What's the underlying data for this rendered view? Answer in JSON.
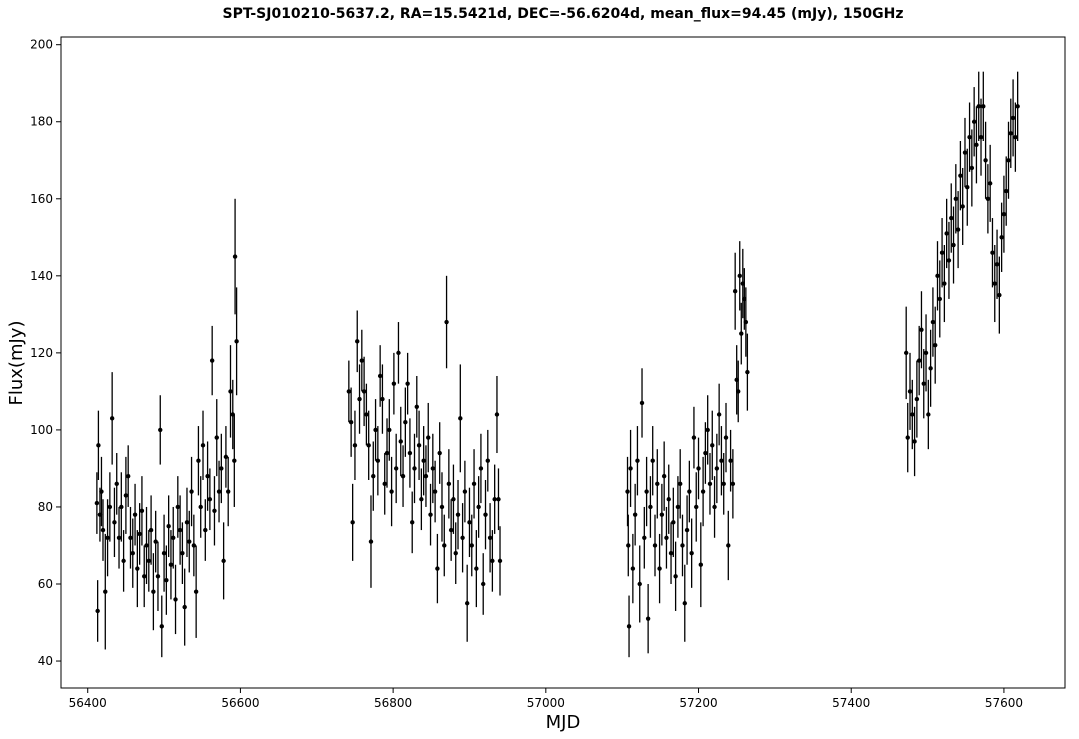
{
  "chart_data": {
    "type": "scatter",
    "title": "SPT-SJ010210-5637.2, RA=15.5421d, DEC=-56.6204d, mean_flux=94.45 (mJy), 150GHz",
    "xlabel": "MJD",
    "ylabel": "Flux(mJy)",
    "xlim": [
      56365,
      57680
    ],
    "ylim": [
      33,
      202
    ],
    "xticks": [
      56400,
      56600,
      56800,
      57000,
      57200,
      57400,
      57600
    ],
    "yticks": [
      40,
      60,
      80,
      100,
      120,
      140,
      160,
      180,
      200
    ],
    "grid": false,
    "legend": "none",
    "error_bars": "vertical",
    "marker": "filled-circle",
    "color": "#000000",
    "points": [
      [
        56412,
        81,
        8
      ],
      [
        56413,
        53,
        8
      ],
      [
        56414,
        96,
        9
      ],
      [
        56416,
        78,
        7
      ],
      [
        56418,
        84,
        9
      ],
      [
        56420,
        74,
        8
      ],
      [
        56423,
        58,
        15
      ],
      [
        56426,
        72,
        10
      ],
      [
        56429,
        80,
        9
      ],
      [
        56432,
        103,
        12
      ],
      [
        56435,
        76,
        9
      ],
      [
        56438,
        86,
        8
      ],
      [
        56441,
        72,
        8
      ],
      [
        56444,
        80,
        9
      ],
      [
        56447,
        66,
        8
      ],
      [
        56450,
        83,
        10
      ],
      [
        56453,
        88,
        8
      ],
      [
        56456,
        72,
        8
      ],
      [
        56459,
        68,
        9
      ],
      [
        56462,
        78,
        8
      ],
      [
        56465,
        64,
        10
      ],
      [
        56468,
        73,
        8
      ],
      [
        56471,
        79,
        9
      ],
      [
        56474,
        62,
        8
      ],
      [
        56477,
        70,
        10
      ],
      [
        56480,
        66,
        8
      ],
      [
        56483,
        74,
        9
      ],
      [
        56486,
        58,
        10
      ],
      [
        56489,
        71,
        8
      ],
      [
        56492,
        62,
        9
      ],
      [
        56495,
        100,
        9
      ],
      [
        56497,
        49,
        8
      ],
      [
        56500,
        68,
        10
      ],
      [
        56503,
        61,
        9
      ],
      [
        56506,
        75,
        8
      ],
      [
        56509,
        65,
        9
      ],
      [
        56512,
        72,
        8
      ],
      [
        56515,
        56,
        9
      ],
      [
        56518,
        80,
        8
      ],
      [
        56521,
        74,
        9
      ],
      [
        56524,
        68,
        8
      ],
      [
        56527,
        54,
        10
      ],
      [
        56530,
        76,
        9
      ],
      [
        56533,
        71,
        8
      ],
      [
        56536,
        84,
        9
      ],
      [
        56539,
        70,
        8
      ],
      [
        56542,
        58,
        12
      ],
      [
        56545,
        92,
        9
      ],
      [
        56548,
        80,
        8
      ],
      [
        56551,
        96,
        9
      ],
      [
        56554,
        74,
        8
      ],
      [
        56557,
        88,
        9
      ],
      [
        56560,
        82,
        8
      ],
      [
        56563,
        118,
        9
      ],
      [
        56566,
        79,
        9
      ],
      [
        56569,
        98,
        10
      ],
      [
        56572,
        84,
        8
      ],
      [
        56575,
        90,
        9
      ],
      [
        56578,
        66,
        10
      ],
      [
        56581,
        93,
        8
      ],
      [
        56584,
        84,
        9
      ],
      [
        56587,
        110,
        12
      ],
      [
        56590,
        104,
        9
      ],
      [
        56592,
        92,
        12
      ],
      [
        56593,
        145,
        15
      ],
      [
        56595,
        123,
        14
      ],
      [
        56742,
        110,
        8
      ],
      [
        56745,
        102,
        9
      ],
      [
        56747,
        76,
        10
      ],
      [
        56750,
        96,
        9
      ],
      [
        56753,
        123,
        8
      ],
      [
        56756,
        108,
        9
      ],
      [
        56759,
        118,
        8
      ],
      [
        56762,
        110,
        9
      ],
      [
        56765,
        104,
        8
      ],
      [
        56768,
        96,
        9
      ],
      [
        56771,
        71,
        12
      ],
      [
        56774,
        88,
        9
      ],
      [
        56777,
        100,
        8
      ],
      [
        56780,
        92,
        9
      ],
      [
        56783,
        114,
        8
      ],
      [
        56786,
        108,
        9
      ],
      [
        56789,
        86,
        8
      ],
      [
        56792,
        94,
        9
      ],
      [
        56795,
        100,
        8
      ],
      [
        56798,
        84,
        9
      ],
      [
        56801,
        112,
        8
      ],
      [
        56804,
        90,
        9
      ],
      [
        56807,
        120,
        8
      ],
      [
        56810,
        97,
        9
      ],
      [
        56813,
        88,
        8
      ],
      [
        56816,
        102,
        9
      ],
      [
        56819,
        112,
        8
      ],
      [
        56822,
        94,
        9
      ],
      [
        56825,
        76,
        8
      ],
      [
        56828,
        90,
        9
      ],
      [
        56831,
        106,
        8
      ],
      [
        56834,
        96,
        9
      ],
      [
        56837,
        82,
        8
      ],
      [
        56840,
        92,
        9
      ],
      [
        56843,
        88,
        8
      ],
      [
        56846,
        98,
        9
      ],
      [
        56849,
        78,
        8
      ],
      [
        56852,
        90,
        9
      ],
      [
        56855,
        84,
        8
      ],
      [
        56858,
        64,
        9
      ],
      [
        56861,
        94,
        8
      ],
      [
        56864,
        80,
        9
      ],
      [
        56867,
        70,
        8
      ],
      [
        56870,
        128,
        12
      ],
      [
        56873,
        86,
        9
      ],
      [
        56876,
        74,
        8
      ],
      [
        56879,
        82,
        9
      ],
      [
        56882,
        68,
        8
      ],
      [
        56885,
        78,
        9
      ],
      [
        56888,
        103,
        14
      ],
      [
        56891,
        72,
        9
      ],
      [
        56894,
        84,
        8
      ],
      [
        56897,
        55,
        10
      ],
      [
        56900,
        76,
        9
      ],
      [
        56903,
        70,
        8
      ],
      [
        56906,
        86,
        9
      ],
      [
        56909,
        64,
        10
      ],
      [
        56912,
        80,
        8
      ],
      [
        56915,
        90,
        9
      ],
      [
        56918,
        60,
        8
      ],
      [
        56921,
        78,
        9
      ],
      [
        56924,
        92,
        8
      ],
      [
        56927,
        72,
        9
      ],
      [
        56930,
        66,
        8
      ],
      [
        56933,
        82,
        9
      ],
      [
        56936,
        104,
        10
      ],
      [
        56938,
        82,
        8
      ],
      [
        56940,
        66,
        9
      ],
      [
        57107,
        84,
        9
      ],
      [
        57108,
        70,
        8
      ],
      [
        57109,
        49,
        8
      ],
      [
        57111,
        90,
        10
      ],
      [
        57114,
        64,
        9
      ],
      [
        57117,
        78,
        8
      ],
      [
        57120,
        92,
        9
      ],
      [
        57123,
        60,
        10
      ],
      [
        57126,
        107,
        9
      ],
      [
        57129,
        72,
        8
      ],
      [
        57132,
        84,
        9
      ],
      [
        57134,
        51,
        9
      ],
      [
        57137,
        80,
        8
      ],
      [
        57140,
        92,
        9
      ],
      [
        57143,
        70,
        8
      ],
      [
        57146,
        86,
        9
      ],
      [
        57149,
        64,
        9
      ],
      [
        57152,
        78,
        8
      ],
      [
        57155,
        88,
        9
      ],
      [
        57158,
        72,
        8
      ],
      [
        57161,
        82,
        9
      ],
      [
        57164,
        68,
        8
      ],
      [
        57167,
        76,
        9
      ],
      [
        57170,
        62,
        9
      ],
      [
        57173,
        80,
        8
      ],
      [
        57176,
        86,
        9
      ],
      [
        57179,
        70,
        8
      ],
      [
        57182,
        55,
        10
      ],
      [
        57185,
        74,
        9
      ],
      [
        57188,
        84,
        8
      ],
      [
        57191,
        68,
        9
      ],
      [
        57194,
        98,
        8
      ],
      [
        57197,
        80,
        9
      ],
      [
        57200,
        90,
        8
      ],
      [
        57203,
        65,
        11
      ],
      [
        57206,
        84,
        9
      ],
      [
        57209,
        94,
        8
      ],
      [
        57212,
        100,
        9
      ],
      [
        57215,
        86,
        8
      ],
      [
        57218,
        96,
        9
      ],
      [
        57221,
        80,
        8
      ],
      [
        57224,
        90,
        9
      ],
      [
        57227,
        104,
        8
      ],
      [
        57230,
        92,
        9
      ],
      [
        57233,
        86,
        8
      ],
      [
        57236,
        98,
        9
      ],
      [
        57239,
        70,
        9
      ],
      [
        57242,
        92,
        8
      ],
      [
        57245,
        86,
        9
      ],
      [
        57248,
        136,
        10
      ],
      [
        57250,
        113,
        9
      ],
      [
        57252,
        110,
        8
      ],
      [
        57254,
        140,
        9
      ],
      [
        57256,
        125,
        8
      ],
      [
        57258,
        138,
        9
      ],
      [
        57260,
        134,
        8
      ],
      [
        57262,
        128,
        9
      ],
      [
        57264,
        115,
        10
      ],
      [
        57472,
        120,
        12
      ],
      [
        57474,
        98,
        9
      ],
      [
        57477,
        110,
        10
      ],
      [
        57480,
        104,
        9
      ],
      [
        57483,
        97,
        9
      ],
      [
        57486,
        108,
        10
      ],
      [
        57489,
        118,
        9
      ],
      [
        57492,
        126,
        10
      ],
      [
        57495,
        112,
        9
      ],
      [
        57498,
        120,
        10
      ],
      [
        57501,
        104,
        9
      ],
      [
        57504,
        116,
        10
      ],
      [
        57507,
        128,
        9
      ],
      [
        57510,
        122,
        10
      ],
      [
        57513,
        140,
        9
      ],
      [
        57516,
        134,
        10
      ],
      [
        57519,
        146,
        9
      ],
      [
        57522,
        138,
        10
      ],
      [
        57525,
        151,
        9
      ],
      [
        57528,
        144,
        10
      ],
      [
        57531,
        155,
        9
      ],
      [
        57534,
        148,
        10
      ],
      [
        57537,
        160,
        9
      ],
      [
        57540,
        152,
        10
      ],
      [
        57543,
        166,
        9
      ],
      [
        57546,
        158,
        10
      ],
      [
        57549,
        172,
        9
      ],
      [
        57552,
        163,
        10
      ],
      [
        57555,
        176,
        9
      ],
      [
        57558,
        168,
        10
      ],
      [
        57561,
        180,
        9
      ],
      [
        57564,
        174,
        10
      ],
      [
        57567,
        184,
        9
      ],
      [
        57570,
        176,
        10
      ],
      [
        57573,
        184,
        9
      ],
      [
        57576,
        170,
        10
      ],
      [
        57579,
        160,
        9
      ],
      [
        57582,
        164,
        10
      ],
      [
        57585,
        146,
        9
      ],
      [
        57588,
        138,
        10
      ],
      [
        57591,
        143,
        9
      ],
      [
        57594,
        135,
        10
      ],
      [
        57597,
        150,
        9
      ],
      [
        57600,
        156,
        10
      ],
      [
        57603,
        162,
        9
      ],
      [
        57606,
        170,
        10
      ],
      [
        57609,
        177,
        9
      ],
      [
        57612,
        181,
        10
      ],
      [
        57615,
        176,
        9
      ],
      [
        57618,
        184,
        9
      ]
    ]
  }
}
